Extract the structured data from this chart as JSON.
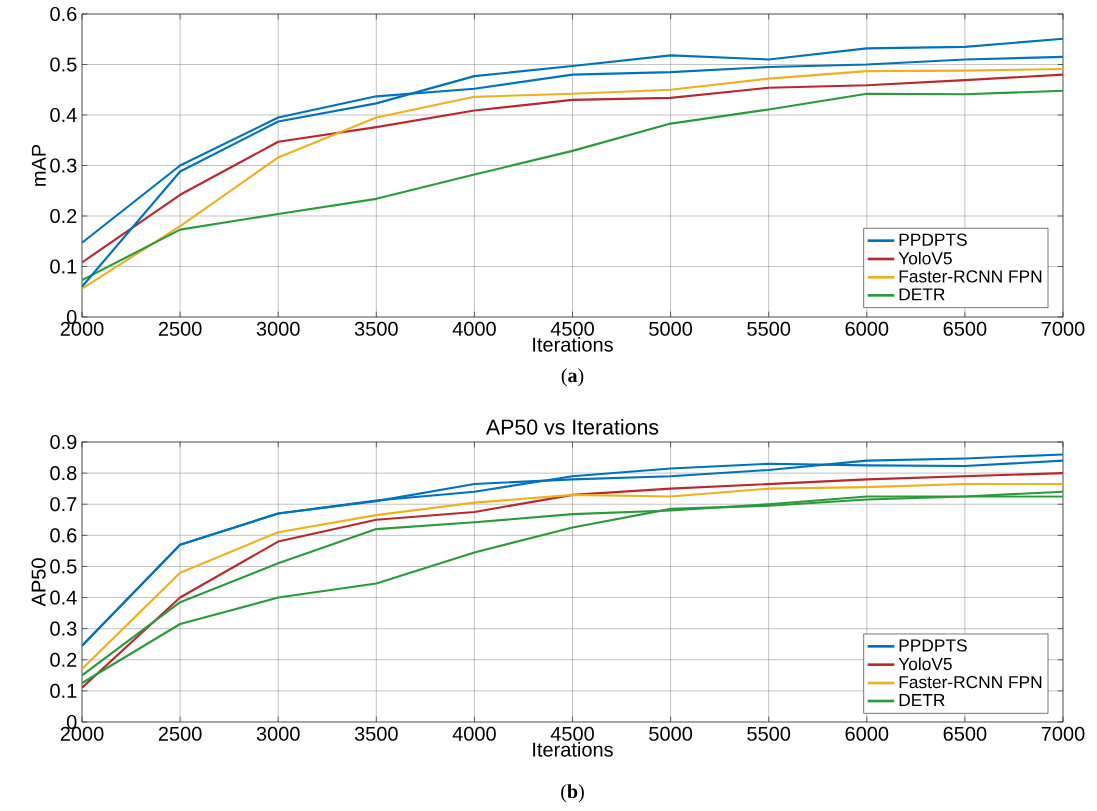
{
  "chart_data": [
    {
      "type": "line",
      "xlabel": "Iterations",
      "ylabel": "mAP",
      "annotations": [
        "(**a**)"
      ],
      "x": [
        2000,
        2500,
        3000,
        3500,
        4000,
        4500,
        5000,
        5500,
        6000,
        6500,
        7000
      ],
      "xlim": [
        2000,
        7000
      ],
      "xticks": [
        2000,
        2500,
        3000,
        3500,
        4000,
        4500,
        5000,
        5500,
        6000,
        6500,
        7000
      ],
      "ylim": [
        0,
        0.6
      ],
      "yticks": [
        0,
        0.1,
        0.2,
        0.3,
        0.4,
        0.5,
        0.6
      ],
      "grid": true,
      "legend": "bottom right",
      "line_style": "solid",
      "marker": "none",
      "series": [
        {
          "name": "PPDPTS",
          "color": "#0072bd",
          "values": [
            0.147,
            0.3,
            0.395,
            0.437,
            0.452,
            0.48,
            0.485,
            0.495,
            0.5,
            0.51,
            0.515
          ]
        },
        {
          "name": "YoloV5",
          "color": "#b8282e",
          "values": [
            0.108,
            0.242,
            0.347,
            0.376,
            0.409,
            0.43,
            0.434,
            0.454,
            0.459,
            0.469,
            0.48
          ]
        },
        {
          "name": "Faster-RCNN FPN",
          "color": "#edb120",
          "values": [
            0.056,
            0.18,
            0.316,
            0.395,
            0.436,
            0.442,
            0.45,
            0.472,
            0.487,
            0.488,
            0.491
          ]
        },
        {
          "name": "DETR",
          "color": "#2a9a3a",
          "values": [
            0.073,
            0.173,
            0.204,
            0.234,
            0.282,
            0.329,
            0.383,
            0.411,
            0.442,
            0.441,
            0.448
          ]
        },
        {
          "color": "#0072bd",
          "values": [
            0.06,
            0.288,
            0.387,
            0.423,
            0.477,
            0.497,
            0.518,
            0.51,
            0.532,
            0.535,
            0.551
          ]
        }
      ]
    },
    {
      "type": "line",
      "title": "AP50 vs Iterations",
      "xlabel": "Iterations",
      "ylabel": "AP50",
      "annotations": [
        "(**b**)"
      ],
      "x": [
        2000,
        2500,
        3000,
        3500,
        4000,
        4500,
        5000,
        5500,
        6000,
        6500,
        7000
      ],
      "xlim": [
        2000,
        7000
      ],
      "xticks": [
        2000,
        2500,
        3000,
        3500,
        4000,
        4500,
        5000,
        5500,
        6000,
        6500,
        7000
      ],
      "ylim": [
        0,
        0.9
      ],
      "yticks": [
        0,
        0.1,
        0.2,
        0.3,
        0.4,
        0.5,
        0.6,
        0.7,
        0.8,
        0.9
      ],
      "grid": true,
      "legend": "bottom right",
      "line_style": "solid",
      "marker": "none",
      "series": [
        {
          "name": "PPDPTS",
          "color": "#0072bd",
          "values": [
            0.245,
            0.57,
            0.67,
            0.71,
            0.765,
            0.78,
            0.79,
            0.81,
            0.84,
            0.847,
            0.86
          ]
        },
        {
          "name": "YoloV5",
          "color": "#b8282e",
          "values": [
            0.11,
            0.4,
            0.58,
            0.65,
            0.675,
            0.73,
            0.75,
            0.765,
            0.78,
            0.79,
            0.8
          ]
        },
        {
          "name": "Faster-RCNN FPN",
          "color": "#edb120",
          "values": [
            0.17,
            0.48,
            0.61,
            0.665,
            0.705,
            0.73,
            0.725,
            0.75,
            0.755,
            0.765,
            0.765
          ]
        },
        {
          "name": "DETR",
          "color": "#2a9a3a",
          "values": [
            0.15,
            0.385,
            0.51,
            0.62,
            0.642,
            0.668,
            0.68,
            0.7,
            0.725,
            0.725,
            0.74
          ]
        },
        {
          "color": "#0072bd",
          "values": [
            0.245,
            0.57,
            0.67,
            0.712,
            0.74,
            0.79,
            0.815,
            0.83,
            0.825,
            0.823,
            0.84
          ]
        },
        {
          "color": "#2a9a3a",
          "values": [
            0.125,
            0.315,
            0.4,
            0.445,
            0.545,
            0.625,
            0.685,
            0.695,
            0.715,
            0.725,
            0.725
          ]
        }
      ]
    }
  ]
}
